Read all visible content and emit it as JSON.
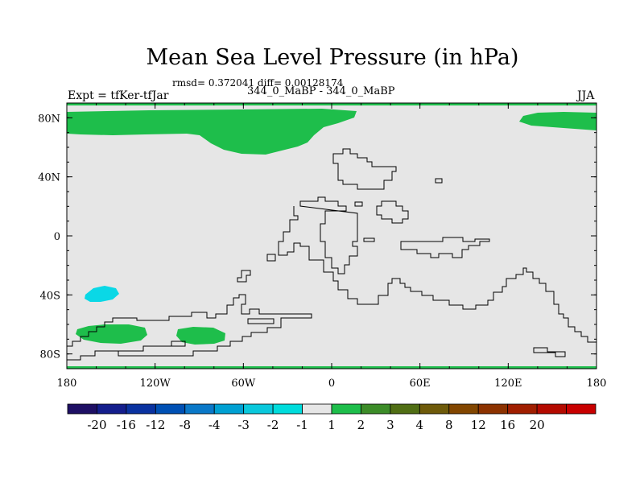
{
  "title": "Mean Sea Level Pressure (in hPa)",
  "stats": "rmsd= 0.372041 diff= 0.00128174",
  "subtitle": "344_0_MaBP - 344_0_MaBP",
  "left_label": "Expt = tfKer-tfJar",
  "right_label": "JJA",
  "map": {
    "lon_range": [
      -180,
      180
    ],
    "lat_range": [
      -90,
      90
    ],
    "background_color": "#e6e6e6",
    "x_ticks": [
      {
        "value": -180,
        "label": "180"
      },
      {
        "value": -120,
        "label": "120W"
      },
      {
        "value": -60,
        "label": "60W"
      },
      {
        "value": 0,
        "label": "0"
      },
      {
        "value": 60,
        "label": "60E"
      },
      {
        "value": 120,
        "label": "120E"
      },
      {
        "value": 180,
        "label": "180"
      }
    ],
    "y_ticks": [
      {
        "value": 80,
        "label": "80N"
      },
      {
        "value": 40,
        "label": "40N"
      },
      {
        "value": 0,
        "label": "0"
      },
      {
        "value": -40,
        "label": "40S"
      },
      {
        "value": -80,
        "label": "80S"
      }
    ]
  },
  "colorbar": {
    "colors": [
      "#1e0f64",
      "#141e8c",
      "#0a32a0",
      "#0050b4",
      "#0a78c8",
      "#00a0d2",
      "#0ac8dc",
      "#00dcdc",
      "#e6e6e6",
      "#1ebe4b",
      "#3c8c28",
      "#506e14",
      "#6e5a0a",
      "#824600",
      "#8c3200",
      "#a01e00",
      "#b40a00",
      "#c80000"
    ],
    "labels": [
      "-20",
      "-16",
      "-12",
      "-8",
      "-4",
      "-3",
      "-2",
      "-1",
      "1",
      "2",
      "3",
      "4",
      "8",
      "12",
      "16",
      "20"
    ]
  }
}
